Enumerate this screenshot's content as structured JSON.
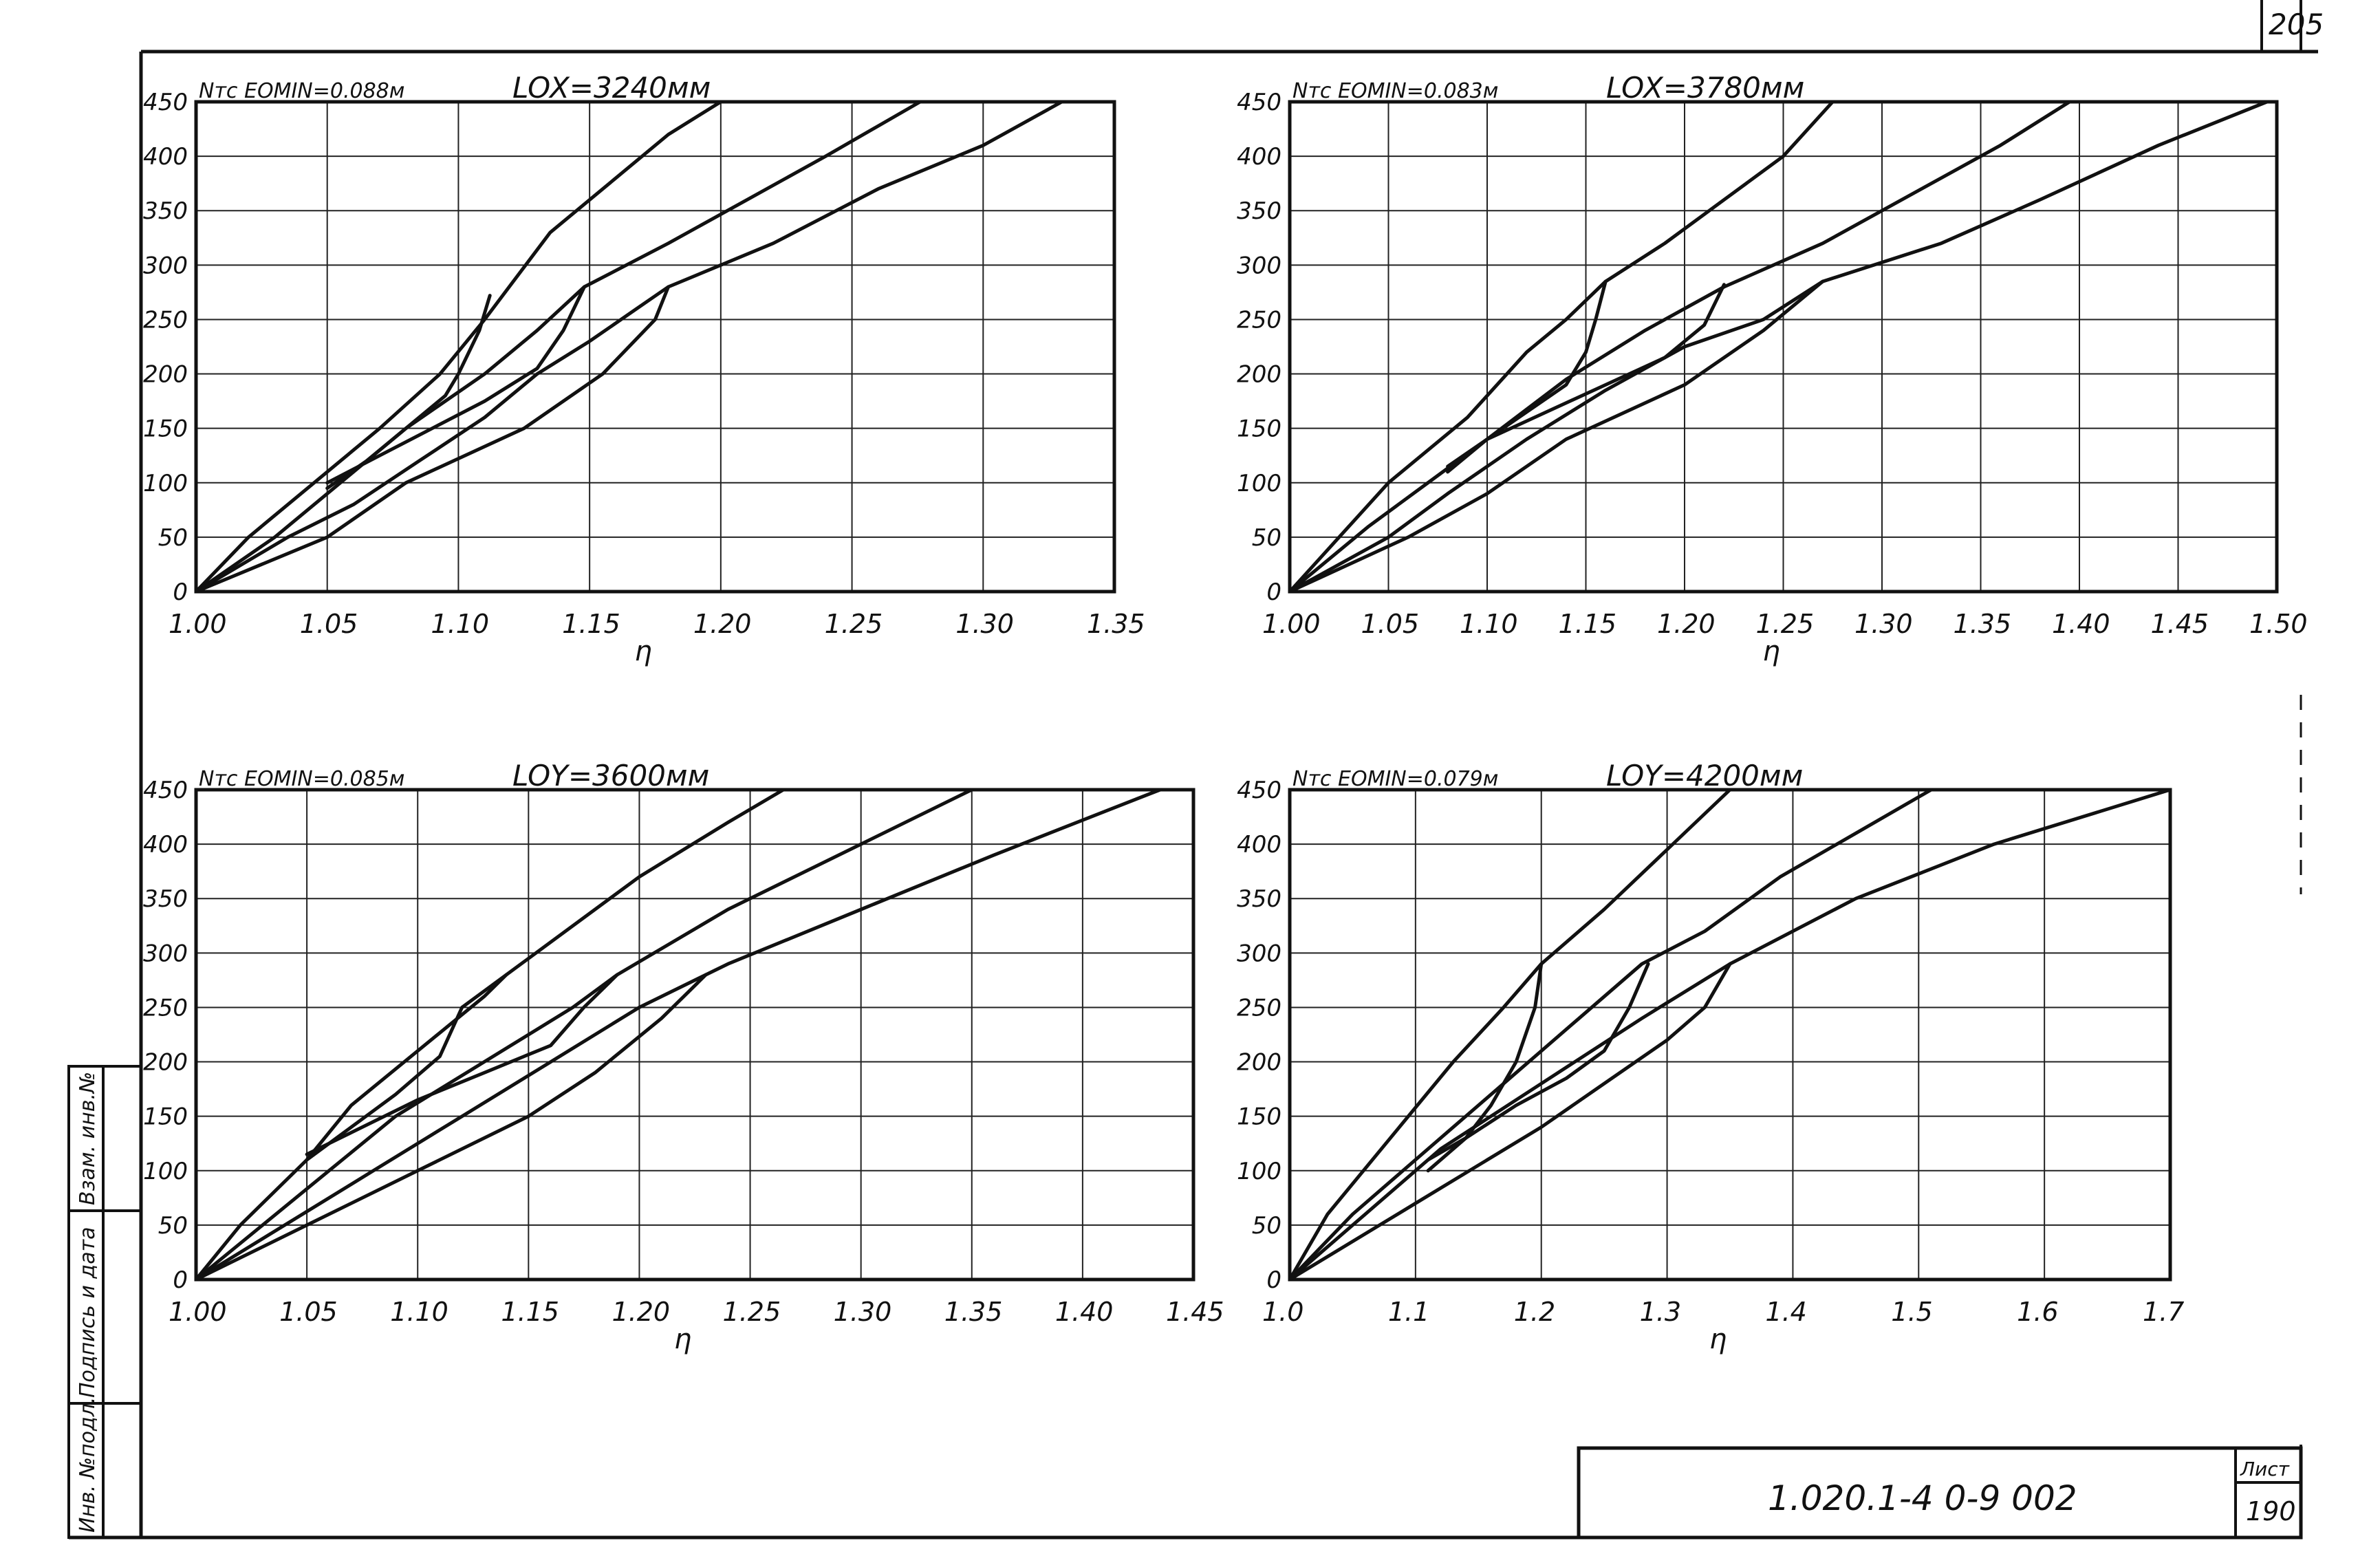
{
  "sheet": {
    "corner_number": "205",
    "doc_code": "1.020.1-4 0-9 002",
    "list_label": "Лист",
    "list_number": "190",
    "side_stamp": [
      "Инв. №подл.",
      "Подпись и дата",
      "Взам. инв.№"
    ]
  },
  "chart_data": [
    {
      "type": "line",
      "ylabel": "Nтс",
      "xlabel": "η",
      "eomin": "EOMIN=0.088м",
      "lo": "LOX=3240мм",
      "xlim": [
        1.0,
        1.35
      ],
      "ylim": [
        0,
        450
      ],
      "xticks": [
        1.0,
        1.05,
        1.1,
        1.15,
        1.2,
        1.25,
        1.3,
        1.35
      ],
      "xtick_labels": [
        "1.00",
        "1.05",
        "1.10",
        "1.15",
        "1.20",
        "1.25",
        "1.30",
        "1.35"
      ],
      "yticks": [
        0,
        50,
        100,
        150,
        200,
        250,
        300,
        350,
        400,
        450
      ],
      "ytick_labels": [
        "0",
        "50",
        "100",
        "150",
        "200",
        "250",
        "300",
        "350",
        "400",
        "450"
      ],
      "grid": true,
      "series": [
        {
          "points": [
            [
              1.0,
              0
            ],
            [
              1.02,
              50
            ],
            [
              1.045,
              100
            ],
            [
              1.07,
              150
            ],
            [
              1.093,
              200
            ],
            [
              1.11,
              250
            ],
            [
              1.12,
              282
            ],
            [
              1.135,
              330
            ],
            [
              1.16,
              380
            ],
            [
              1.18,
              420
            ],
            [
              1.2,
              450
            ]
          ]
        },
        {
          "points": [
            [
              1.0,
              0
            ],
            [
              1.03,
              50
            ],
            [
              1.055,
              100
            ],
            [
              1.08,
              150
            ],
            [
              1.11,
              200
            ],
            [
              1.13,
              240
            ],
            [
              1.148,
              280
            ],
            [
              1.18,
              320
            ],
            [
              1.21,
              360
            ],
            [
              1.24,
              400
            ],
            [
              1.276,
              450
            ]
          ]
        },
        {
          "points": [
            [
              1.0,
              0
            ],
            [
              1.035,
              50
            ],
            [
              1.06,
              80
            ],
            [
              1.085,
              120
            ],
            [
              1.11,
              160
            ],
            [
              1.13,
              200
            ],
            [
              1.15,
              230
            ],
            [
              1.168,
              260
            ],
            [
              1.18,
              280
            ],
            [
              1.22,
              320
            ],
            [
              1.26,
              370
            ],
            [
              1.3,
              410
            ],
            [
              1.33,
              450
            ]
          ]
        },
        {
          "points": [
            [
              1.0,
              0
            ],
            [
              1.05,
              50
            ],
            [
              1.08,
              100
            ],
            [
              1.125,
              150
            ],
            [
              1.155,
              200
            ],
            [
              1.175,
              250
            ],
            [
              1.18,
              280
            ]
          ]
        },
        {
          "points": [
            [
              1.112,
              272
            ],
            [
              1.108,
              240
            ],
            [
              1.1,
              200
            ],
            [
              1.095,
              180
            ],
            [
              1.08,
              150
            ],
            [
              1.065,
              120
            ],
            [
              1.05,
              95
            ]
          ]
        },
        {
          "points": [
            [
              1.148,
              280
            ],
            [
              1.14,
              240
            ],
            [
              1.13,
              205
            ],
            [
              1.11,
              175
            ],
            [
              1.09,
              150
            ],
            [
              1.07,
              125
            ],
            [
              1.05,
              100
            ]
          ]
        }
      ]
    },
    {
      "type": "line",
      "ylabel": "Nтс",
      "xlabel": "η",
      "eomin": "EOMIN=0.083м",
      "lo": "LOX=3780мм",
      "xlim": [
        1.0,
        1.5
      ],
      "ylim": [
        0,
        450
      ],
      "xticks": [
        1.0,
        1.05,
        1.1,
        1.15,
        1.2,
        1.25,
        1.3,
        1.35,
        1.4,
        1.45,
        1.5
      ],
      "xtick_labels": [
        "1.00",
        "1.05",
        "1.10",
        "1.15",
        "1.20",
        "1.25",
        "1.30",
        "1.35",
        "1.40",
        "1.45",
        "1.50"
      ],
      "yticks": [
        0,
        50,
        100,
        150,
        200,
        250,
        300,
        350,
        400,
        450
      ],
      "ytick_labels": [
        "0",
        "50",
        "100",
        "150",
        "200",
        "250",
        "300",
        "350",
        "400",
        "450"
      ],
      "grid": true,
      "series": [
        {
          "points": [
            [
              1.0,
              0
            ],
            [
              1.03,
              60
            ],
            [
              1.05,
              100
            ],
            [
              1.09,
              160
            ],
            [
              1.12,
              220
            ],
            [
              1.14,
              250
            ],
            [
              1.16,
              285
            ],
            [
              1.19,
              320
            ],
            [
              1.22,
              360
            ],
            [
              1.25,
              400
            ],
            [
              1.275,
              450
            ]
          ]
        },
        {
          "points": [
            [
              1.0,
              0
            ],
            [
              1.04,
              60
            ],
            [
              1.07,
              100
            ],
            [
              1.1,
              140
            ],
            [
              1.14,
              195
            ],
            [
              1.18,
              240
            ],
            [
              1.22,
              280
            ],
            [
              1.27,
              320
            ],
            [
              1.32,
              370
            ],
            [
              1.36,
              410
            ],
            [
              1.395,
              450
            ]
          ]
        },
        {
          "points": [
            [
              1.0,
              0
            ],
            [
              1.05,
              50
            ],
            [
              1.08,
              90
            ],
            [
              1.12,
              140
            ],
            [
              1.16,
              185
            ],
            [
              1.2,
              225
            ],
            [
              1.24,
              250
            ],
            [
              1.27,
              285
            ],
            [
              1.33,
              320
            ],
            [
              1.38,
              360
            ],
            [
              1.44,
              410
            ],
            [
              1.495,
              450
            ]
          ]
        },
        {
          "points": [
            [
              1.0,
              0
            ],
            [
              1.06,
              50
            ],
            [
              1.1,
              90
            ],
            [
              1.14,
              140
            ],
            [
              1.2,
              190
            ],
            [
              1.24,
              240
            ],
            [
              1.27,
              285
            ]
          ]
        },
        {
          "points": [
            [
              1.16,
              285
            ],
            [
              1.155,
              250
            ],
            [
              1.15,
              220
            ],
            [
              1.14,
              190
            ],
            [
              1.12,
              165
            ],
            [
              1.1,
              140
            ],
            [
              1.08,
              110
            ]
          ]
        },
        {
          "points": [
            [
              1.22,
              282
            ],
            [
              1.21,
              245
            ],
            [
              1.19,
              215
            ],
            [
              1.16,
              190
            ],
            [
              1.13,
              165
            ],
            [
              1.1,
              140
            ],
            [
              1.08,
              115
            ]
          ]
        }
      ]
    },
    {
      "type": "line",
      "ylabel": "Nтс",
      "xlabel": "η",
      "eomin": "EOMIN=0.085м",
      "lo": "LOY=3600мм",
      "xlim": [
        1.0,
        1.45
      ],
      "ylim": [
        0,
        450
      ],
      "xticks": [
        1.0,
        1.05,
        1.1,
        1.15,
        1.2,
        1.25,
        1.3,
        1.35,
        1.4,
        1.45
      ],
      "xtick_labels": [
        "1.00",
        "1.05",
        "1.10",
        "1.15",
        "1.20",
        "1.25",
        "1.30",
        "1.35",
        "1.40",
        "1.45"
      ],
      "yticks": [
        0,
        50,
        100,
        150,
        200,
        250,
        300,
        350,
        400,
        450
      ],
      "ytick_labels": [
        "0",
        "50",
        "100",
        "150",
        "200",
        "250",
        "300",
        "350",
        "400",
        "450"
      ],
      "grid": true,
      "series": [
        {
          "points": [
            [
              1.0,
              0
            ],
            [
              1.02,
              50
            ],
            [
              1.05,
              110
            ],
            [
              1.07,
              160
            ],
            [
              1.1,
              210
            ],
            [
              1.13,
              260
            ],
            [
              1.14,
              280
            ],
            [
              1.16,
              310
            ],
            [
              1.2,
              370
            ],
            [
              1.24,
              420
            ],
            [
              1.265,
              450
            ]
          ]
        },
        {
          "points": [
            [
              1.0,
              0
            ],
            [
              1.03,
              50
            ],
            [
              1.06,
              100
            ],
            [
              1.09,
              150
            ],
            [
              1.13,
              200
            ],
            [
              1.17,
              250
            ],
            [
              1.19,
              280
            ],
            [
              1.24,
              340
            ],
            [
              1.3,
              400
            ],
            [
              1.35,
              450
            ]
          ]
        },
        {
          "points": [
            [
              1.0,
              0
            ],
            [
              1.04,
              50
            ],
            [
              1.08,
              100
            ],
            [
              1.12,
              150
            ],
            [
              1.16,
              200
            ],
            [
              1.2,
              250
            ],
            [
              1.24,
              290
            ],
            [
              1.3,
              340
            ],
            [
              1.36,
              390
            ],
            [
              1.41,
              430
            ],
            [
              1.435,
              450
            ]
          ]
        },
        {
          "points": [
            [
              1.0,
              0
            ],
            [
              1.05,
              50
            ],
            [
              1.1,
              100
            ],
            [
              1.15,
              150
            ],
            [
              1.18,
              190
            ],
            [
              1.21,
              240
            ],
            [
              1.23,
              280
            ]
          ]
        },
        {
          "points": [
            [
              1.14,
              280
            ],
            [
              1.12,
              250
            ],
            [
              1.11,
              205
            ],
            [
              1.09,
              170
            ],
            [
              1.07,
              140
            ],
            [
              1.05,
              110
            ]
          ]
        },
        {
          "points": [
            [
              1.19,
              280
            ],
            [
              1.175,
              250
            ],
            [
              1.16,
              215
            ],
            [
              1.13,
              190
            ],
            [
              1.1,
              165
            ],
            [
              1.07,
              135
            ],
            [
              1.05,
              115
            ]
          ]
        }
      ]
    },
    {
      "type": "line",
      "ylabel": "Nтс",
      "xlabel": "η",
      "eomin": "EOMIN=0.079м",
      "lo": "LOY=4200мм",
      "xlim": [
        1.0,
        1.7
      ],
      "ylim": [
        0,
        450
      ],
      "xticks": [
        1.0,
        1.1,
        1.2,
        1.3,
        1.4,
        1.5,
        1.6,
        1.7
      ],
      "xtick_labels": [
        "1.0",
        "1.1",
        "1.2",
        "1.3",
        "1.4",
        "1.5",
        "1.6",
        "1.7"
      ],
      "yticks": [
        0,
        50,
        100,
        150,
        200,
        250,
        300,
        350,
        400,
        450
      ],
      "ytick_labels": [
        "0",
        "50",
        "100",
        "150",
        "200",
        "250",
        "300",
        "350",
        "400",
        "450"
      ],
      "grid": true,
      "series": [
        {
          "points": [
            [
              1.0,
              0
            ],
            [
              1.03,
              60
            ],
            [
              1.08,
              130
            ],
            [
              1.13,
              200
            ],
            [
              1.17,
              250
            ],
            [
              1.2,
              290
            ],
            [
              1.25,
              340
            ],
            [
              1.3,
              395
            ],
            [
              1.35,
              450
            ]
          ]
        },
        {
          "points": [
            [
              1.0,
              0
            ],
            [
              1.05,
              60
            ],
            [
              1.11,
              120
            ],
            [
              1.17,
              180
            ],
            [
              1.23,
              240
            ],
            [
              1.28,
              290
            ],
            [
              1.33,
              320
            ],
            [
              1.39,
              370
            ],
            [
              1.45,
              410
            ],
            [
              1.51,
              450
            ]
          ]
        },
        {
          "points": [
            [
              1.0,
              0
            ],
            [
              1.06,
              60
            ],
            [
              1.12,
              120
            ],
            [
              1.2,
              180
            ],
            [
              1.28,
              240
            ],
            [
              1.35,
              290
            ],
            [
              1.45,
              350
            ],
            [
              1.56,
              400
            ],
            [
              1.7,
              450
            ]
          ]
        },
        {
          "points": [
            [
              1.0,
              0
            ],
            [
              1.1,
              70
            ],
            [
              1.2,
              140
            ],
            [
              1.25,
              180
            ],
            [
              1.3,
              220
            ],
            [
              1.33,
              250
            ],
            [
              1.35,
              290
            ]
          ]
        },
        {
          "points": [
            [
              1.2,
              290
            ],
            [
              1.195,
              250
            ],
            [
              1.18,
              200
            ],
            [
              1.16,
              160
            ],
            [
              1.14,
              130
            ],
            [
              1.11,
              100
            ]
          ]
        },
        {
          "points": [
            [
              1.285,
              290
            ],
            [
              1.27,
              250
            ],
            [
              1.25,
              210
            ],
            [
              1.22,
              185
            ],
            [
              1.18,
              160
            ],
            [
              1.14,
              130
            ],
            [
              1.11,
              110
            ]
          ]
        }
      ]
    }
  ]
}
